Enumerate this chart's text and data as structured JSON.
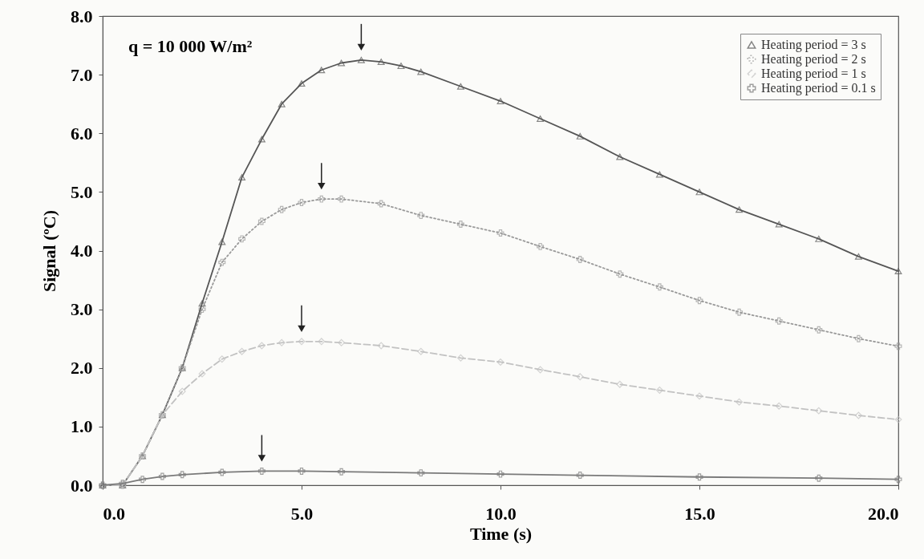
{
  "chart_data": {
    "type": "line",
    "xlabel": "Time (s)",
    "ylabel": "Signal (ºC)",
    "annotations": [
      "q = 10 000 W/m²"
    ],
    "xlim": [
      0,
      20
    ],
    "ylim": [
      0,
      8
    ],
    "xticks": [
      {
        "value": 0,
        "label": "0.0"
      },
      {
        "value": 5,
        "label": "5.0"
      },
      {
        "value": 10,
        "label": "10.0"
      },
      {
        "value": 15,
        "label": "15.0"
      },
      {
        "value": 20,
        "label": "20.0"
      }
    ],
    "yticks": [
      {
        "value": 0,
        "label": "0.0"
      },
      {
        "value": 1,
        "label": "1.0"
      },
      {
        "value": 2,
        "label": "2.0"
      },
      {
        "value": 3,
        "label": "3.0"
      },
      {
        "value": 4,
        "label": "4.0"
      },
      {
        "value": 5,
        "label": "5.0"
      },
      {
        "value": 6,
        "label": "6.0"
      },
      {
        "value": 7,
        "label": "7.0"
      },
      {
        "value": 8,
        "label": "8.0"
      }
    ],
    "grid": false,
    "legend": "top right",
    "series": [
      {
        "name": "Heating period = 3 s",
        "color": "#555555",
        "marker": "triangle",
        "line_style": "solid",
        "x": [
          0,
          0.5,
          1,
          1.5,
          2,
          2.5,
          3,
          3.5,
          4,
          4.5,
          5,
          5.5,
          6,
          6.5,
          7,
          7.5,
          8,
          9,
          10,
          11,
          12,
          13,
          14,
          15,
          16,
          17,
          18,
          19,
          20
        ],
        "values": [
          0,
          0,
          0.5,
          1.2,
          2.0,
          3.1,
          4.15,
          5.25,
          5.9,
          6.5,
          6.85,
          7.08,
          7.2,
          7.25,
          7.22,
          7.15,
          7.05,
          6.8,
          6.55,
          6.25,
          5.95,
          5.6,
          5.3,
          5.0,
          4.7,
          4.45,
          4.2,
          3.9,
          3.65
        ]
      },
      {
        "name": "Heating period = 2 s",
        "color": "#999999",
        "marker": "cross",
        "line_style": "dotted",
        "x": [
          0,
          0.5,
          1,
          1.5,
          2,
          2.5,
          3,
          3.5,
          4,
          4.5,
          5,
          5.5,
          6,
          7,
          8,
          9,
          10,
          11,
          12,
          13,
          14,
          15,
          16,
          17,
          18,
          19,
          20
        ],
        "values": [
          0,
          0,
          0.5,
          1.2,
          2.0,
          3.0,
          3.8,
          4.2,
          4.5,
          4.7,
          4.82,
          4.88,
          4.88,
          4.8,
          4.6,
          4.45,
          4.3,
          4.07,
          3.85,
          3.6,
          3.38,
          3.15,
          2.95,
          2.8,
          2.65,
          2.5,
          2.37
        ]
      },
      {
        "name": "Heating period = 1 s",
        "color": "#c2c2c2",
        "marker": "diamond",
        "line_style": "dashed",
        "x": [
          0,
          0.5,
          1,
          1.5,
          2,
          2.5,
          3,
          3.5,
          4,
          4.5,
          5,
          5.5,
          6,
          7,
          8,
          9,
          10,
          11,
          12,
          13,
          14,
          15,
          16,
          17,
          18,
          19,
          20
        ],
        "values": [
          0,
          0,
          0.5,
          1.2,
          1.6,
          1.9,
          2.15,
          2.28,
          2.38,
          2.43,
          2.45,
          2.45,
          2.43,
          2.38,
          2.28,
          2.17,
          2.1,
          1.97,
          1.85,
          1.72,
          1.62,
          1.52,
          1.42,
          1.35,
          1.27,
          1.19,
          1.12
        ]
      },
      {
        "name": "Heating period = 0.1 s",
        "color": "#7a7a7a",
        "marker": "cross",
        "line_style": "solid",
        "x": [
          0,
          0.5,
          1,
          1.5,
          2,
          3,
          4,
          5,
          6,
          8,
          10,
          12,
          15,
          18,
          20
        ],
        "values": [
          0,
          0.03,
          0.1,
          0.15,
          0.18,
          0.22,
          0.24,
          0.24,
          0.23,
          0.21,
          0.19,
          0.17,
          0.14,
          0.12,
          0.1
        ]
      }
    ]
  }
}
